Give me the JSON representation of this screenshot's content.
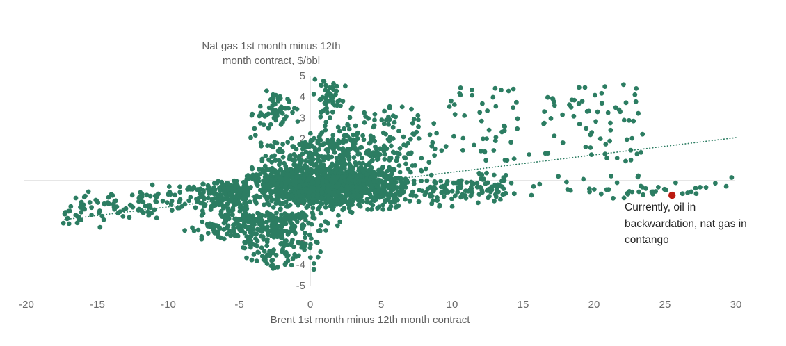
{
  "chart_data": {
    "type": "scatter",
    "y_axis_title_line1": "Nat gas 1st month minus 12th",
    "y_axis_title_line2": "month contract, $/bbl",
    "xlabel": "Brent 1st month minus 12th month contract",
    "xlim": [
      -20,
      30
    ],
    "ylim": [
      -5,
      5
    ],
    "x_ticks": [
      -20,
      -15,
      -10,
      -5,
      0,
      5,
      10,
      15,
      20,
      25,
      30
    ],
    "y_ticks": [
      5,
      4,
      3,
      2,
      1,
      0,
      -1,
      -2,
      -3,
      -4,
      -5
    ],
    "grid": "off",
    "legend": "none",
    "colors": {
      "point": "#2c7d62",
      "highlight": "#bb1a10",
      "axis_line": "#d8d8d8",
      "tick_label": "#6a6a6a",
      "axis_title": "#5f5f5f",
      "annotation": "#242424"
    },
    "trendline": {
      "style": "dotted",
      "x1": -17.3,
      "y1": -1.85,
      "x2": 30,
      "y2": 2.05
    },
    "highlight_point": {
      "x": 25.5,
      "y": -0.7,
      "label": "current"
    },
    "annotation": {
      "lines": [
        "Currently, oil in",
        "backwardation, nat gas in",
        "contango"
      ]
    },
    "seed": 1337,
    "point_clusters": [
      {
        "name": "core-blob",
        "count": 1350,
        "x": {
          "dist": "normal",
          "mean": 1.2,
          "std": 3.0,
          "min": -4.5,
          "max": 8.5
        },
        "y": {
          "dist": "normal",
          "mean": -0.2,
          "std": 0.55,
          "min": -1.6,
          "max": 1.25
        }
      },
      {
        "name": "blob-left",
        "count": 220,
        "x": {
          "dist": "normal",
          "mean": -5.0,
          "std": 2.0,
          "min": -9.2,
          "max": -4.4
        },
        "y": {
          "dist": "normal",
          "mean": -0.65,
          "std": 0.4,
          "min": -1.6,
          "max": 0.05
        }
      },
      {
        "name": "blob-right-wedge",
        "count": 90,
        "x": {
          "dist": "uniform",
          "min": 8.5,
          "max": 13.8
        },
        "y": {
          "dist": "normal",
          "mean": -0.5,
          "std": 0.4,
          "min": -1.3,
          "max": 0.45
        }
      },
      {
        "name": "upper-band",
        "count": 230,
        "x": {
          "dist": "normal",
          "mean": 2.0,
          "std": 2.8,
          "min": -4.3,
          "max": 8.8
        },
        "y": {
          "dist": "normal",
          "mean": 1.4,
          "std": 0.55,
          "min": 0.95,
          "max": 2.9
        }
      },
      {
        "name": "lower-lobe",
        "count": 320,
        "x": {
          "dist": "normal",
          "mean": -3.2,
          "std": 2.3,
          "min": -9.3,
          "max": 2.5
        },
        "y": {
          "dist": "normal",
          "mean": -2.0,
          "std": 0.5,
          "min": -3.1,
          "max": -1.5
        }
      },
      {
        "name": "deep-lower-tail",
        "count": 75,
        "x": {
          "dist": "normal",
          "mean": -2.2,
          "std": 1.4,
          "min": -5.5,
          "max": 1.5
        },
        "y": {
          "dist": "normal",
          "mean": -3.4,
          "std": 0.45,
          "min": -4.4,
          "max": -2.9
        }
      },
      {
        "name": "left-tail",
        "count": 110,
        "x": {
          "dist": "uniform",
          "min": -17.5,
          "max": -8.8
        },
        "y": {
          "dist": "normal",
          "mean": -1.15,
          "std": 0.4,
          "min": -2.35,
          "max": -0.3
        },
        "y_slope": 0.07,
        "y_slope_x0": -13
      },
      {
        "name": "top-left-cluster",
        "count": 55,
        "x": {
          "dist": "normal",
          "mean": -2.6,
          "std": 0.95,
          "min": -4.7,
          "max": -0.8
        },
        "y": {
          "dist": "normal",
          "mean": 3.35,
          "std": 0.5,
          "min": 2.45,
          "max": 4.3
        }
      },
      {
        "name": "top-middle-cluster",
        "count": 48,
        "x": {
          "dist": "normal",
          "mean": 1.3,
          "std": 0.55,
          "min": 0.2,
          "max": 2.7
        },
        "y": {
          "dist": "normal",
          "mean": 3.9,
          "std": 0.55,
          "min": 2.95,
          "max": 4.85
        }
      },
      {
        "name": "mid-upper-scatter",
        "count": 40,
        "x": {
          "dist": "uniform",
          "min": 2.6,
          "max": 8.5
        },
        "y": {
          "dist": "uniform",
          "min": 2.0,
          "max": 3.6
        }
      },
      {
        "name": "upper-right-scatter",
        "count": 120,
        "x": {
          "dist": "uniform",
          "min": 8.2,
          "max": 23.5
        },
        "y": {
          "dist": "uniform",
          "min": 0.9,
          "max": 4.6
        }
      },
      {
        "name": "right-near-zero",
        "count": 55,
        "x": {
          "dist": "uniform",
          "min": 8.5,
          "max": 29.5
        },
        "y": {
          "dist": "normal",
          "mean": -0.3,
          "std": 0.33,
          "min": -0.85,
          "max": 0.45
        }
      },
      {
        "name": "right-cluster-25",
        "count": 12,
        "x": {
          "dist": "uniform",
          "min": 21.5,
          "max": 27.5
        },
        "y": {
          "dist": "normal",
          "mean": -0.55,
          "std": 0.15,
          "min": -0.9,
          "max": -0.2
        }
      }
    ],
    "extra_points": [
      {
        "x": 29.7,
        "y": 0.15
      },
      {
        "x": 27.2,
        "y": -0.62
      },
      {
        "x": 26.6,
        "y": -0.58
      }
    ]
  }
}
